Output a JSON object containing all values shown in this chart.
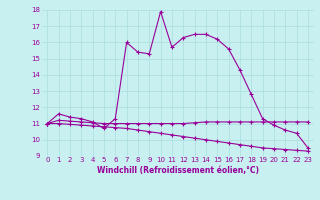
{
  "xlabel": "Windchill (Refroidissement éolien,°C)",
  "x": [
    0,
    1,
    2,
    3,
    4,
    5,
    6,
    7,
    8,
    9,
    10,
    11,
    12,
    13,
    14,
    15,
    16,
    17,
    18,
    19,
    20,
    21,
    22,
    23
  ],
  "line1": [
    11.0,
    11.6,
    11.4,
    11.3,
    11.1,
    10.7,
    11.3,
    16.0,
    15.4,
    15.3,
    17.9,
    15.7,
    16.3,
    16.5,
    16.5,
    16.2,
    15.6,
    14.3,
    12.8,
    11.3,
    10.9,
    10.6,
    10.4,
    9.5
  ],
  "line2": [
    11.0,
    11.2,
    11.15,
    11.1,
    11.05,
    11.0,
    11.0,
    11.0,
    11.0,
    11.0,
    11.0,
    11.0,
    11.0,
    11.05,
    11.1,
    11.1,
    11.1,
    11.1,
    11.1,
    11.1,
    11.1,
    11.1,
    11.1,
    11.1
  ],
  "line3": [
    11.0,
    11.0,
    10.95,
    10.9,
    10.85,
    10.8,
    10.75,
    10.7,
    10.6,
    10.5,
    10.4,
    10.3,
    10.2,
    10.1,
    10.0,
    9.9,
    9.8,
    9.7,
    9.6,
    9.5,
    9.45,
    9.4,
    9.35,
    9.3
  ],
  "line_color": "#990099",
  "bg_color": "#c8f0f0",
  "grid_color": "#aadddd",
  "ylim": [
    9,
    18
  ],
  "xlim": [
    -0.5,
    23.5
  ],
  "yticks": [
    9,
    10,
    11,
    12,
    13,
    14,
    15,
    16,
    17,
    18
  ],
  "xticks": [
    0,
    1,
    2,
    3,
    4,
    5,
    6,
    7,
    8,
    9,
    10,
    11,
    12,
    13,
    14,
    15,
    16,
    17,
    18,
    19,
    20,
    21,
    22,
    23
  ],
  "tick_fontsize": 5,
  "xlabel_fontsize": 5.5,
  "marker_size": 2.5,
  "line_width": 0.8
}
